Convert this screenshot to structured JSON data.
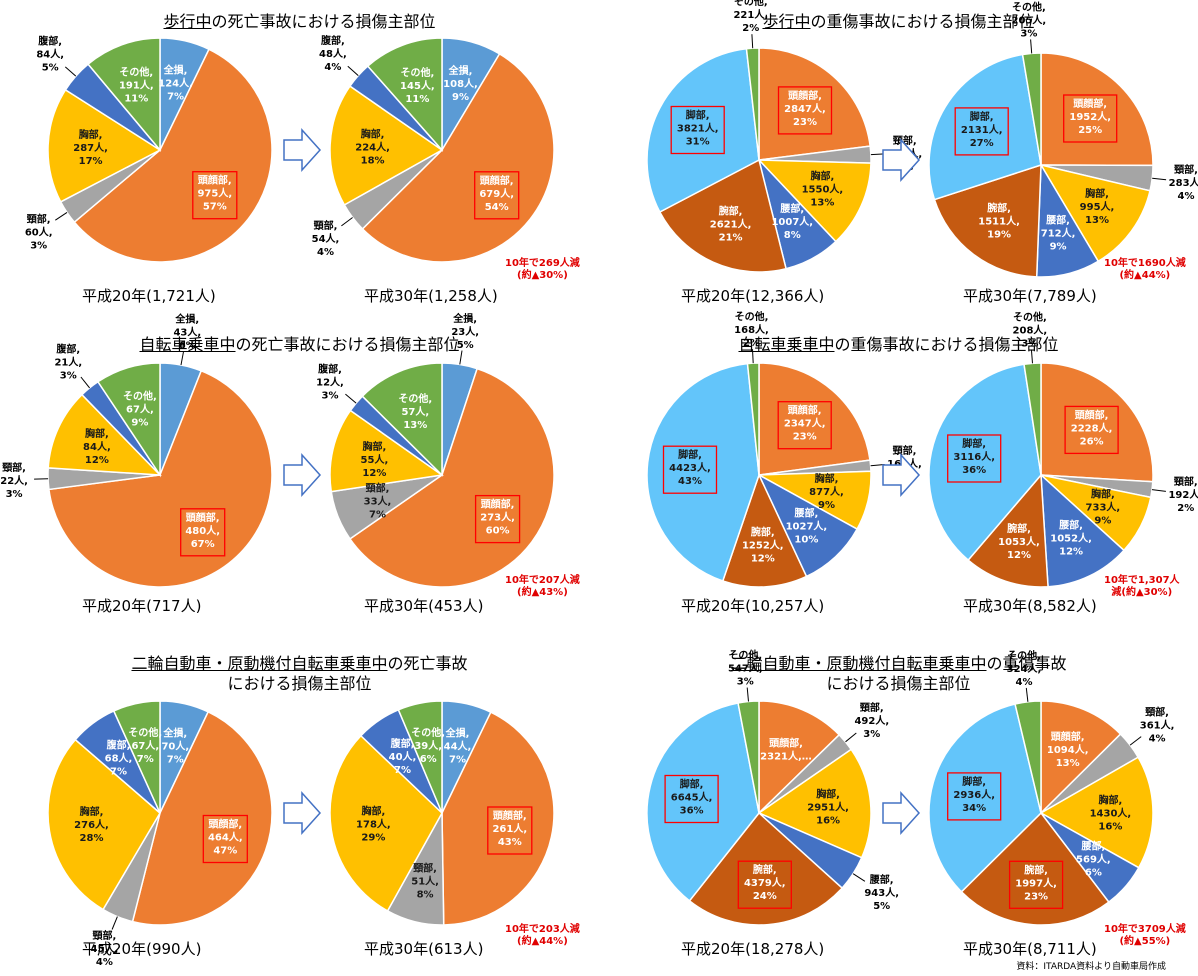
{
  "colors": {
    "head": "#ED7D31",
    "neck": "#A5A5A5",
    "chest": "#FFC000",
    "abdomen": "#4472C4",
    "other": "#70AD47",
    "whole": "#5B9BD5",
    "lumbar": "#4472C4",
    "arm": "#C55A11",
    "leg": "#63C5FA",
    "box": "#FF0000",
    "note": "#E00000"
  },
  "source": "資料：ITARDA資料より自動車局作成",
  "panels": [
    {
      "title_prefix": "歩行中",
      "title_rest": "の死亡事故における損傷主部位",
      "title_line2": "",
      "reduction": "10年で269人減\n(約▲30%)",
      "chart_data": [
        {
          "type": "pie",
          "caption": "平成20年(1,721人)",
          "slices": [
            {
              "part": "whole",
              "label": "全損, 124人, 7%",
              "value": 124
            },
            {
              "part": "head",
              "label": "頭顔部, 975人, 57%",
              "value": 975,
              "boxed": true
            },
            {
              "part": "neck",
              "label": "頸部, 60人, 3%",
              "value": 60
            },
            {
              "part": "chest",
              "label": "胸部, 287人, 17%",
              "value": 287
            },
            {
              "part": "abdomen",
              "label": "腹部, 84人, 5%",
              "value": 84
            },
            {
              "part": "other",
              "label": "その他, 191人, 11%",
              "value": 191
            }
          ]
        },
        {
          "type": "pie",
          "caption": "平成30年(1,258人)",
          "slices": [
            {
              "part": "whole",
              "label": "全損, 108人, 9%",
              "value": 108
            },
            {
              "part": "head",
              "label": "頭顔部, 679人, 54%",
              "value": 679,
              "boxed": true
            },
            {
              "part": "neck",
              "label": "頸部, 54人, 4%",
              "value": 54
            },
            {
              "part": "chest",
              "label": "胸部, 224人, 18%",
              "value": 224
            },
            {
              "part": "abdomen",
              "label": "腹部, 48人, 4%",
              "value": 48
            },
            {
              "part": "other",
              "label": "その他, 145人, 11%",
              "value": 145
            }
          ]
        }
      ]
    },
    {
      "title_prefix": "歩行中",
      "title_rest": "の重傷事故における損傷主部位",
      "title_line2": "",
      "reduction": "10年で1690人減\n(約▲44%)",
      "chart_data": [
        {
          "type": "pie",
          "caption": "平成20年(12,366人)",
          "slices": [
            {
              "part": "head",
              "label": "頭顔部, 2847人, 23%",
              "value": 2847,
              "boxed": true
            },
            {
              "part": "neck",
              "label": "頸部, 299人, 2%",
              "value": 299
            },
            {
              "part": "chest",
              "label": "胸部, 1550人, 13%",
              "value": 1550
            },
            {
              "part": "lumbar",
              "label": "腰部, 1007人, 8%",
              "value": 1007
            },
            {
              "part": "arm",
              "label": "腕部, 2621人, 21%",
              "value": 2621
            },
            {
              "part": "leg",
              "label": "脚部, 3821人, 31%",
              "value": 3821,
              "boxed": true
            },
            {
              "part": "other",
              "label": "その他, 221人, 2%",
              "value": 221
            }
          ]
        },
        {
          "type": "pie",
          "caption": "平成30年(7,789人)",
          "slices": [
            {
              "part": "head",
              "label": "頭顔部, 1952人, 25%",
              "value": 1952,
              "boxed": true
            },
            {
              "part": "neck",
              "label": "頸部, 283人, 4%",
              "value": 283
            },
            {
              "part": "chest",
              "label": "胸部, 995人, 13%",
              "value": 995
            },
            {
              "part": "lumbar",
              "label": "腰部, 712人, 9%",
              "value": 712
            },
            {
              "part": "arm",
              "label": "腕部, 1511人, 19%",
              "value": 1511
            },
            {
              "part": "leg",
              "label": "脚部, 2131人, 27%",
              "value": 2131,
              "boxed": true
            },
            {
              "part": "other",
              "label": "その他, 205人, 3%",
              "value": 205
            }
          ]
        }
      ]
    },
    {
      "title_prefix": "自転車乗車中",
      "title_rest": "の死亡事故における損傷主部位",
      "title_line2": "",
      "reduction": "10年で207人減\n(約▲43%)",
      "chart_data": [
        {
          "type": "pie",
          "caption": "平成20年(717人)",
          "slices": [
            {
              "part": "whole",
              "label": "全損, 43人, 6%",
              "value": 43
            },
            {
              "part": "head",
              "label": "頭顔部, 480人, 67%",
              "value": 480,
              "boxed": true
            },
            {
              "part": "neck",
              "label": "頸部, 22人, 3%",
              "value": 22
            },
            {
              "part": "chest",
              "label": "胸部, 84人, 12%",
              "value": 84
            },
            {
              "part": "abdomen",
              "label": "腹部, 21人, 3%",
              "value": 21
            },
            {
              "part": "other",
              "label": "その他, 67人, 9%",
              "value": 67
            }
          ]
        },
        {
          "type": "pie",
          "caption": "平成30年(453人)",
          "slices": [
            {
              "part": "whole",
              "label": "全損, 23人, 5%",
              "value": 23
            },
            {
              "part": "head",
              "label": "頭顔部, 273人, 60%",
              "value": 273,
              "boxed": true
            },
            {
              "part": "neck",
              "label": "頸部, 33人, 7%",
              "value": 33
            },
            {
              "part": "chest",
              "label": "胸部, 55人, 12%",
              "value": 55
            },
            {
              "part": "abdomen",
              "label": "腹部, 12人, 3%",
              "value": 12
            },
            {
              "part": "other",
              "label": "その他, 57人, 13%",
              "value": 57
            }
          ]
        }
      ]
    },
    {
      "title_prefix": "自転車乗車中",
      "title_rest": "の重傷事故における損傷主部位",
      "title_line2": "",
      "reduction": "10年で1,307人\n減(約▲30%)",
      "chart_data": [
        {
          "type": "pie",
          "caption": "平成20年(10,257人)",
          "slices": [
            {
              "part": "head",
              "label": "頭顔部, 2347人, 23%",
              "value": 2347,
              "boxed": true
            },
            {
              "part": "neck",
              "label": "頸部, 163人, 2%",
              "value": 163
            },
            {
              "part": "chest",
              "label": "胸部, 877人, 9%",
              "value": 877
            },
            {
              "part": "lumbar",
              "label": "腰部, 1027人, 10%",
              "value": 1027
            },
            {
              "part": "arm",
              "label": "腕部, 1252人, 12%",
              "value": 1252
            },
            {
              "part": "leg",
              "label": "脚部, 4423人, 43%",
              "value": 4423,
              "boxed": true
            },
            {
              "part": "other",
              "label": "その他, 168人, 2%",
              "value": 168
            }
          ]
        },
        {
          "type": "pie",
          "caption": "平成30年(8,582人)",
          "slices": [
            {
              "part": "head",
              "label": "頭顔部, 2228人, 26%",
              "value": 2228,
              "boxed": true
            },
            {
              "part": "neck",
              "label": "頸部, 192人, 2%",
              "value": 192
            },
            {
              "part": "chest",
              "label": "胸部, 733人, 9%",
              "value": 733
            },
            {
              "part": "lumbar",
              "label": "腰部, 1052人, 12%",
              "value": 1052
            },
            {
              "part": "arm",
              "label": "腕部, 1053人, 12%",
              "value": 1053
            },
            {
              "part": "leg",
              "label": "脚部, 3116人, 36%",
              "value": 3116,
              "boxed": true
            },
            {
              "part": "other",
              "label": "その他, 208人, 3%",
              "value": 208
            }
          ]
        }
      ]
    },
    {
      "title_prefix": "二輪自動車・原動機付自転車乗車中",
      "title_rest": "の死亡事故",
      "title_line2": "における損傷主部位",
      "reduction": "10年で203人減\n(約▲44%)",
      "chart_data": [
        {
          "type": "pie",
          "caption": "平成20年(990人)",
          "slices": [
            {
              "part": "whole",
              "label": "全損, 70人, 7%",
              "value": 70
            },
            {
              "part": "head",
              "label": "頭顔部, 464人, 47%",
              "value": 464,
              "boxed": true
            },
            {
              "part": "neck",
              "label": "頸部, 45人, 4%",
              "value": 45
            },
            {
              "part": "chest",
              "label": "胸部, 276人, 28%",
              "value": 276
            },
            {
              "part": "abdomen",
              "label": "腹部, 68人, 7%",
              "value": 68
            },
            {
              "part": "other",
              "label": "その他, 67人, 7%",
              "value": 67
            }
          ]
        },
        {
          "type": "pie",
          "caption": "平成30年(613人)",
          "slices": [
            {
              "part": "whole",
              "label": "全損, 44人, 7%",
              "value": 44
            },
            {
              "part": "head",
              "label": "頭顔部, 261人, 43%",
              "value": 261,
              "boxed": true
            },
            {
              "part": "neck",
              "label": "頸部, 51人, 8%",
              "value": 51
            },
            {
              "part": "chest",
              "label": "胸部, 178人, 29%",
              "value": 178
            },
            {
              "part": "abdomen",
              "label": "腹部, 40人, 7%",
              "value": 40
            },
            {
              "part": "other",
              "label": "その他, 39人, 6%",
              "value": 39
            }
          ]
        }
      ]
    },
    {
      "title_prefix": "二輪自動車・原動機付自転車乗車中",
      "title_rest": "の重傷事故",
      "title_line2": "における損傷主部位",
      "reduction": "10年で3709人減\n(約▲55%)",
      "chart_data": [
        {
          "type": "pie",
          "caption": "平成20年(18,278人)",
          "slices": [
            {
              "part": "head",
              "label": "頭顔部, 2321人,…",
              "value": 2321
            },
            {
              "part": "neck",
              "label": "頸部, 492人, 3%",
              "value": 492
            },
            {
              "part": "chest",
              "label": "胸部, 2951人, 16%",
              "value": 2951
            },
            {
              "part": "lumbar",
              "label": "腰部, 943人, 5%",
              "value": 943
            },
            {
              "part": "arm",
              "label": "腕部, 4379人, 24%",
              "value": 4379,
              "boxed": true
            },
            {
              "part": "leg",
              "label": "脚部, 6645人, 36%",
              "value": 6645,
              "boxed": true
            },
            {
              "part": "other",
              "label": "その他, 547人, 3%",
              "value": 547
            }
          ]
        },
        {
          "type": "pie",
          "caption": "平成30年(8,711人)",
          "slices": [
            {
              "part": "head",
              "label": "頭顔部, 1094人, 13%",
              "value": 1094
            },
            {
              "part": "neck",
              "label": "頸部, 361人, 4%",
              "value": 361
            },
            {
              "part": "chest",
              "label": "胸部, 1430人, 16%",
              "value": 1430
            },
            {
              "part": "lumbar",
              "label": "腰部, 569人, 6%",
              "value": 569
            },
            {
              "part": "arm",
              "label": "腕部, 1997人, 23%",
              "value": 1997,
              "boxed": true
            },
            {
              "part": "leg",
              "label": "脚部, 2936人, 34%",
              "value": 2936,
              "boxed": true
            },
            {
              "part": "other",
              "label": "その他, 324人, 4%",
              "value": 324
            }
          ]
        }
      ]
    }
  ]
}
